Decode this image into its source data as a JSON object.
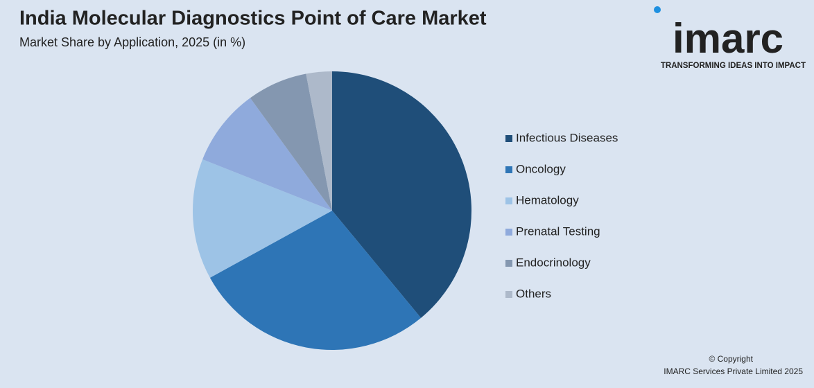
{
  "chart_data": {
    "type": "pie",
    "title": "India Molecular Diagnostics Point of Care Market",
    "subtitle": "Market Share by Application, 2025 (in %)",
    "categories": [
      "Infectious Diseases",
      "Oncology",
      "Hematology",
      "Prenatal Testing",
      "Endocrinology",
      "Others"
    ],
    "values": [
      39,
      28,
      14,
      9,
      7,
      3
    ],
    "colors": [
      "#1f4e79",
      "#2e75b6",
      "#9dc3e6",
      "#8faadc",
      "#8497b0",
      "#adb9ca"
    ],
    "legend": "right"
  },
  "logo": {
    "name": "imarc",
    "tagline": "TRANSFORMING IDEAS INTO IMPACT"
  },
  "footer": {
    "line1": "© Copyright",
    "line2": "IMARC Services Private Limited 2025"
  }
}
